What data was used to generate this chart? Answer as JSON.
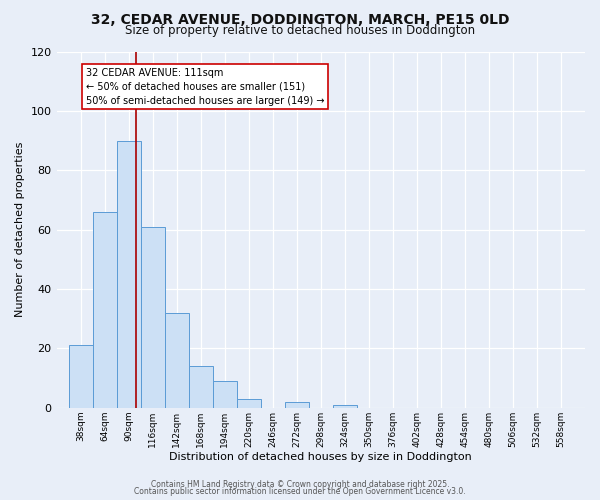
{
  "title": "32, CEDAR AVENUE, DODDINGTON, MARCH, PE15 0LD",
  "subtitle": "Size of property relative to detached houses in Doddington",
  "xlabel": "Distribution of detached houses by size in Doddington",
  "ylabel": "Number of detached properties",
  "bar_values": [
    21,
    66,
    90,
    61,
    32,
    14,
    9,
    3,
    0,
    2,
    0,
    1,
    0,
    0,
    0,
    0,
    0,
    0,
    0,
    0,
    0
  ],
  "bin_labels": [
    "38sqm",
    "64sqm",
    "90sqm",
    "116sqm",
    "142sqm",
    "168sqm",
    "194sqm",
    "220sqm",
    "246sqm",
    "272sqm",
    "298sqm",
    "324sqm",
    "350sqm",
    "376sqm",
    "402sqm",
    "428sqm",
    "454sqm",
    "480sqm",
    "506sqm",
    "532sqm",
    "558sqm"
  ],
  "bin_starts": [
    38,
    64,
    90,
    116,
    142,
    168,
    194,
    220,
    246,
    272,
    298,
    324,
    350,
    376,
    402,
    428,
    454,
    480,
    506,
    532,
    558
  ],
  "bin_width": 26,
  "bar_color": "#cce0f5",
  "bar_edge_color": "#5b9bd5",
  "vline_x": 111,
  "vline_color": "#aa0000",
  "annotation_title": "32 CEDAR AVENUE: 111sqm",
  "annotation_line1": "← 50% of detached houses are smaller (151)",
  "annotation_line2": "50% of semi-detached houses are larger (149) →",
  "annotation_box_facecolor": "#ffffff",
  "annotation_box_edgecolor": "#cc0000",
  "ylim": [
    0,
    120
  ],
  "yticks": [
    0,
    20,
    40,
    60,
    80,
    100,
    120
  ],
  "footer1": "Contains HM Land Registry data © Crown copyright and database right 2025.",
  "footer2": "Contains public sector information licensed under the Open Government Licence v3.0.",
  "bg_color": "#e8eef8",
  "plot_bg_color": "#e8eef8",
  "grid_color": "#ffffff",
  "title_fontsize": 10,
  "subtitle_fontsize": 8.5
}
